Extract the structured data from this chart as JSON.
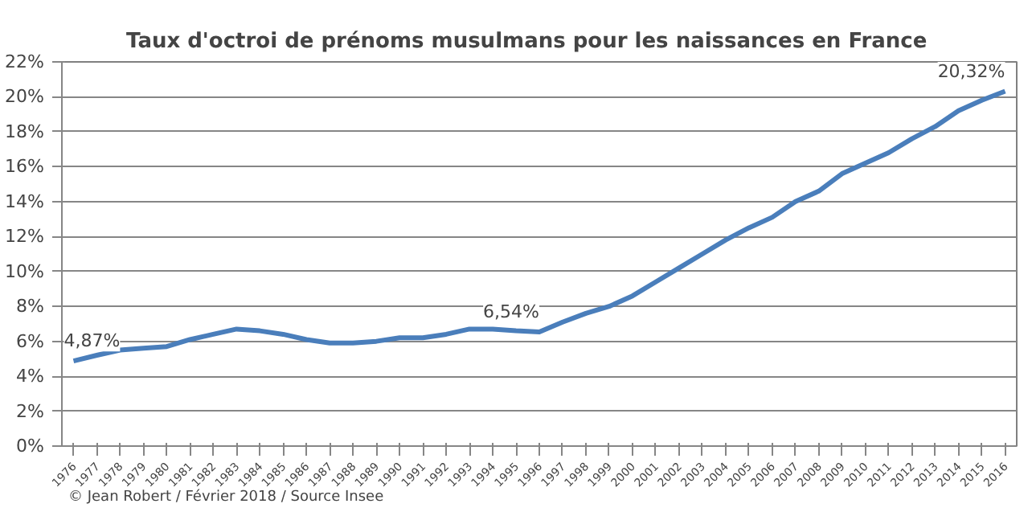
{
  "chart_data": {
    "type": "line",
    "title": "Taux d'octroi de prénoms musulmans pour les naissances en France",
    "categories": [
      "1976",
      "1977",
      "1978",
      "1979",
      "1980",
      "1981",
      "1982",
      "1983",
      "1984",
      "1985",
      "1986",
      "1987",
      "1988",
      "1989",
      "1990",
      "1991",
      "1992",
      "1993",
      "1994",
      "1995",
      "1996",
      "1997",
      "1998",
      "1999",
      "2000",
      "2001",
      "2002",
      "2003",
      "2004",
      "2005",
      "2006",
      "2007",
      "2008",
      "2009",
      "2010",
      "2011",
      "2012",
      "2013",
      "2014",
      "2015",
      "2016"
    ],
    "series": [
      {
        "color": "#4a7ebb",
        "values": [
          4.87,
          5.2,
          5.5,
          5.6,
          5.7,
          6.1,
          6.4,
          6.7,
          6.6,
          6.4,
          6.1,
          5.9,
          5.9,
          6.0,
          6.2,
          6.2,
          6.4,
          6.7,
          6.7,
          6.6,
          6.54,
          7.1,
          7.6,
          8.0,
          8.6,
          9.4,
          10.2,
          11.0,
          11.8,
          12.5,
          13.1,
          14.0,
          14.6,
          15.6,
          16.2,
          16.8,
          17.6,
          18.3,
          19.2,
          19.8,
          20.32
        ],
        "value_labels": [
          "4,87%",
          null,
          null,
          null,
          null,
          null,
          null,
          null,
          null,
          null,
          null,
          null,
          null,
          null,
          null,
          null,
          null,
          null,
          null,
          null,
          "6,54%",
          null,
          null,
          null,
          null,
          null,
          null,
          null,
          null,
          null,
          null,
          null,
          null,
          null,
          null,
          null,
          null,
          null,
          null,
          null,
          "20,32%"
        ]
      }
    ],
    "ylim": [
      0,
      22
    ],
    "yticks": [
      {
        "value": 0,
        "label": "0%"
      },
      {
        "value": 2,
        "label": "2%"
      },
      {
        "value": 4,
        "label": "4%"
      },
      {
        "value": 6,
        "label": "6%"
      },
      {
        "value": 8,
        "label": "8%"
      },
      {
        "value": 10,
        "label": "10%"
      },
      {
        "value": 12,
        "label": "12%"
      },
      {
        "value": 14,
        "label": "14%"
      },
      {
        "value": 16,
        "label": "16%"
      },
      {
        "value": 18,
        "label": "18%"
      },
      {
        "value": 20,
        "label": "20%"
      },
      {
        "value": 22,
        "label": "22%"
      }
    ],
    "grid": "y",
    "marker": "none",
    "line_style": "solid",
    "annotations": [
      "© Jean Robert / Février 2018 / Source Insee"
    ]
  }
}
